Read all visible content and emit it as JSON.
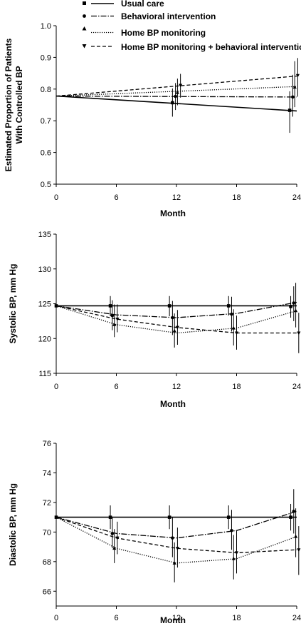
{
  "legend": {
    "entries": [
      {
        "key": "usual",
        "label": "Usual care"
      },
      {
        "key": "behav",
        "label": "Behavioral intervention"
      },
      {
        "key": "home",
        "label": "Home BP monitoring"
      },
      {
        "key": "combo",
        "label": "Home BP monitoring + behavioral intervention"
      }
    ]
  },
  "chart_data": [
    {
      "type": "line",
      "id": "controlled",
      "xlabel": "Month",
      "ylabel_lines": [
        "Estimated Proportion of Patients",
        "With Controlled BP"
      ],
      "x_ticks": [
        0,
        6,
        12,
        18,
        24
      ],
      "y_ticks": [
        0.5,
        0.6,
        0.7,
        0.8,
        0.9,
        1.0
      ],
      "y_tick_labels": [
        "0.5",
        "0.6",
        "0.7",
        "0.8",
        "0.9",
        "1.0"
      ],
      "xlim": [
        0,
        24
      ],
      "ylim": [
        0.5,
        1.0
      ],
      "series": [
        {
          "key": "usual",
          "line": [
            [
              0,
              0.778
            ],
            [
              24,
              0.731
            ]
          ],
          "points": [
            {
              "x": 11.6,
              "y": 0.757,
              "lo": 0.713,
              "hi": 0.802
            },
            {
              "x": 23.3,
              "y": 0.733,
              "lo": 0.662,
              "hi": 0.793
            }
          ]
        },
        {
          "key": "behav",
          "line": [
            [
              0,
              0.778
            ],
            [
              24,
              0.775
            ]
          ],
          "points": [
            {
              "x": 11.9,
              "y": 0.777,
              "lo": 0.734,
              "hi": 0.819
            },
            {
              "x": 23.6,
              "y": 0.775,
              "lo": 0.713,
              "hi": 0.845
            }
          ]
        },
        {
          "key": "home",
          "line": [
            [
              0,
              0.778
            ],
            [
              24,
              0.808
            ]
          ],
          "points": [
            {
              "x": 12.1,
              "y": 0.789,
              "lo": 0.749,
              "hi": 0.833
            },
            {
              "x": 23.8,
              "y": 0.806,
              "lo": 0.743,
              "hi": 0.888
            }
          ]
        },
        {
          "key": "combo",
          "line": [
            [
              0,
              0.778
            ],
            [
              24,
              0.841
            ]
          ],
          "points": [
            {
              "x": 12.4,
              "y": 0.812,
              "lo": 0.773,
              "hi": 0.848
            },
            {
              "x": 24.1,
              "y": 0.843,
              "lo": 0.776,
              "hi": 0.898
            }
          ]
        }
      ]
    },
    {
      "type": "line",
      "id": "systolic",
      "xlabel": "Month",
      "ylabel_lines": [
        "Systolic BP, mm Hg"
      ],
      "x_ticks": [
        0,
        6,
        12,
        18,
        24
      ],
      "y_ticks": [
        115,
        120,
        125,
        130,
        135
      ],
      "y_tick_labels": [
        "115",
        "120",
        "125",
        "130",
        "135"
      ],
      "xlim": [
        0,
        24
      ],
      "ylim": [
        115,
        135
      ],
      "series": [
        {
          "key": "usual",
          "line": [
            [
              0,
              124.7
            ],
            [
              24,
              124.7
            ]
          ],
          "points": [
            {
              "x": 0,
              "y": 124.7,
              "lo": 123.4,
              "hi": 126.0
            },
            {
              "x": 5.4,
              "y": 124.7,
              "lo": 123.2,
              "hi": 126.1
            },
            {
              "x": 11.3,
              "y": 124.7,
              "lo": 123.2,
              "hi": 126.1
            },
            {
              "x": 17.2,
              "y": 124.7,
              "lo": 123.3,
              "hi": 126.1
            },
            {
              "x": 23.4,
              "y": 124.6,
              "lo": 123.0,
              "hi": 126.1
            }
          ]
        },
        {
          "key": "behav",
          "line": [
            [
              0,
              124.7
            ],
            [
              6,
              123.4
            ],
            [
              12,
              123.0
            ],
            [
              18,
              123.6
            ],
            [
              24,
              125.2
            ]
          ],
          "points": [
            {
              "x": 5.6,
              "y": 123.3,
              "lo": 121.2,
              "hi": 125.5
            },
            {
              "x": 11.6,
              "y": 123.0,
              "lo": 120.5,
              "hi": 125.4
            },
            {
              "x": 17.5,
              "y": 123.5,
              "lo": 121.0,
              "hi": 126.0
            },
            {
              "x": 23.7,
              "y": 125.1,
              "lo": 122.5,
              "hi": 127.5
            }
          ]
        },
        {
          "key": "home",
          "line": [
            [
              0,
              124.7
            ],
            [
              6,
              122.0
            ],
            [
              12,
              120.8
            ],
            [
              18,
              121.5
            ],
            [
              24,
              124.0
            ]
          ],
          "points": [
            {
              "x": 5.8,
              "y": 122.0,
              "lo": 120.2,
              "hi": 124.9
            },
            {
              "x": 11.8,
              "y": 121.1,
              "lo": 118.7,
              "hi": 123.6
            },
            {
              "x": 17.7,
              "y": 121.5,
              "lo": 119.0,
              "hi": 124.2
            },
            {
              "x": 23.9,
              "y": 124.0,
              "lo": 121.6,
              "hi": 128.0
            }
          ]
        },
        {
          "key": "combo",
          "line": [
            [
              0,
              124.7
            ],
            [
              6,
              122.8
            ],
            [
              12,
              121.6
            ],
            [
              18,
              120.8
            ],
            [
              24,
              120.8
            ]
          ],
          "points": [
            {
              "x": 6.1,
              "y": 122.8,
              "lo": 120.9,
              "hi": 124.9
            },
            {
              "x": 12.1,
              "y": 121.6,
              "lo": 119.1,
              "hi": 124.1
            },
            {
              "x": 18.0,
              "y": 120.8,
              "lo": 118.4,
              "hi": 123.3
            },
            {
              "x": 24.2,
              "y": 120.8,
              "lo": 117.9,
              "hi": 123.7
            }
          ]
        }
      ]
    },
    {
      "type": "line",
      "id": "diastolic",
      "xlabel": "Month",
      "ylabel_lines": [
        "Diastolic BP, mm Hg"
      ],
      "x_ticks": [
        0,
        6,
        12,
        18,
        24
      ],
      "y_ticks": [
        66,
        68,
        70,
        72,
        74,
        76
      ],
      "y_tick_labels": [
        "66",
        "68",
        "70",
        "72",
        "74",
        "76"
      ],
      "xlim": [
        0,
        24
      ],
      "ylim": [
        65,
        76
      ],
      "series": [
        {
          "key": "usual",
          "line": [
            [
              0,
              71.0
            ],
            [
              24,
              71.0
            ]
          ],
          "points": [
            {
              "x": 0,
              "y": 71.0,
              "lo": 70.2,
              "hi": 71.8
            },
            {
              "x": 5.4,
              "y": 71.0,
              "lo": 70.2,
              "hi": 71.8
            },
            {
              "x": 11.3,
              "y": 71.0,
              "lo": 70.2,
              "hi": 71.8
            },
            {
              "x": 17.2,
              "y": 71.0,
              "lo": 70.2,
              "hi": 71.8
            },
            {
              "x": 23.4,
              "y": 71.0,
              "lo": 70.1,
              "hi": 71.9
            }
          ]
        },
        {
          "key": "behav",
          "line": [
            [
              0,
              71.0
            ],
            [
              6,
              69.9
            ],
            [
              12,
              69.6
            ],
            [
              18,
              70.1
            ],
            [
              24,
              71.4
            ]
          ],
          "points": [
            {
              "x": 5.6,
              "y": 69.9,
              "lo": 68.9,
              "hi": 71.0
            },
            {
              "x": 11.6,
              "y": 69.6,
              "lo": 68.3,
              "hi": 71.0
            },
            {
              "x": 17.5,
              "y": 70.1,
              "lo": 68.8,
              "hi": 71.5
            },
            {
              "x": 23.7,
              "y": 71.4,
              "lo": 69.9,
              "hi": 72.9
            }
          ]
        },
        {
          "key": "home",
          "line": [
            [
              0,
              71.0
            ],
            [
              6,
              68.9
            ],
            [
              12,
              67.9
            ],
            [
              18,
              68.2
            ],
            [
              24,
              69.7
            ]
          ],
          "points": [
            {
              "x": 5.8,
              "y": 68.9,
              "lo": 67.9,
              "hi": 70.2
            },
            {
              "x": 11.8,
              "y": 67.9,
              "lo": 66.6,
              "hi": 69.3
            },
            {
              "x": 17.7,
              "y": 68.2,
              "lo": 66.8,
              "hi": 69.8
            },
            {
              "x": 23.9,
              "y": 69.7,
              "lo": 68.3,
              "hi": 71.6
            }
          ]
        },
        {
          "key": "combo",
          "line": [
            [
              0,
              71.0
            ],
            [
              6,
              69.6
            ],
            [
              12,
              68.9
            ],
            [
              18,
              68.6
            ],
            [
              24,
              68.8
            ]
          ],
          "points": [
            {
              "x": 6.1,
              "y": 69.6,
              "lo": 68.5,
              "hi": 70.7
            },
            {
              "x": 12.1,
              "y": 68.9,
              "lo": 67.6,
              "hi": 70.3
            },
            {
              "x": 18.0,
              "y": 68.6,
              "lo": 67.2,
              "hi": 70.1
            },
            {
              "x": 24.2,
              "y": 68.8,
              "lo": 67.1,
              "hi": 70.4
            }
          ]
        }
      ]
    }
  ]
}
